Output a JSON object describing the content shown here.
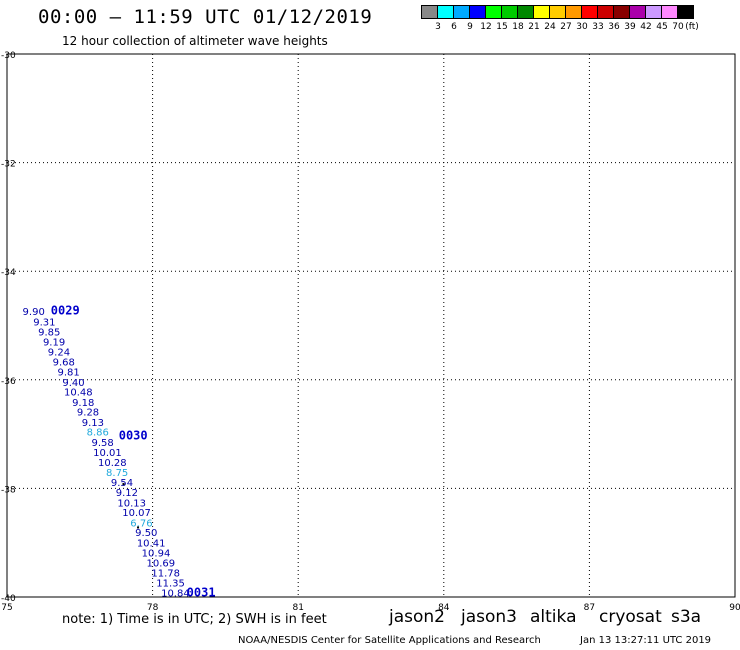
{
  "header": {
    "title": "00:00 – 11:59 UTC 01/12/2019",
    "subtitle": "12 hour collection of altimeter wave heights"
  },
  "color_scale": {
    "labels": [
      "3",
      "6",
      "9",
      "12",
      "15",
      "18",
      "21",
      "24",
      "27",
      "30",
      "33",
      "36",
      "39",
      "42",
      "45",
      "70"
    ],
    "unit": "(ft)",
    "colors": [
      "#888888",
      "#00ffff",
      "#00aaff",
      "#0000ff",
      "#00ff00",
      "#00cc00",
      "#008800",
      "#ffff00",
      "#ffcc00",
      "#ff9900",
      "#ff0000",
      "#cc0000",
      "#880000",
      "#aa00aa",
      "#cc99ff",
      "#ff88ff",
      "#000000"
    ]
  },
  "map": {
    "lon_ticks": [
      "75",
      "78",
      "81",
      "84",
      "87",
      "90"
    ],
    "lat_ticks": [
      "-30",
      "-32",
      "-34",
      "-36",
      "-38",
      "-40"
    ],
    "time_labels": [
      "0029",
      "0030",
      "0031"
    ],
    "observations": [
      {
        "lon": 75.55,
        "lat": -34.81,
        "swh": "9.90",
        "color": "#0000aa"
      },
      {
        "lon": 75.77,
        "lat": -35.0,
        "swh": "9.31",
        "color": "#0000aa"
      },
      {
        "lon": 75.87,
        "lat": -35.18,
        "swh": "9.85",
        "color": "#0000aa"
      },
      {
        "lon": 75.97,
        "lat": -35.37,
        "swh": "9.19",
        "color": "#0000aa"
      },
      {
        "lon": 76.07,
        "lat": -35.55,
        "swh": "9.24",
        "color": "#0000aa"
      },
      {
        "lon": 76.17,
        "lat": -35.74,
        "swh": "9.68",
        "color": "#0000aa"
      },
      {
        "lon": 76.27,
        "lat": -35.92,
        "swh": "9.81",
        "color": "#0000aa"
      },
      {
        "lon": 76.37,
        "lat": -36.11,
        "swh": "9.40",
        "color": "#0000aa"
      },
      {
        "lon": 76.47,
        "lat": -36.29,
        "swh": "10.48",
        "color": "#0000aa"
      },
      {
        "lon": 76.57,
        "lat": -36.48,
        "swh": "9.18",
        "color": "#0000aa"
      },
      {
        "lon": 76.67,
        "lat": -36.66,
        "swh": "9.28",
        "color": "#0000aa"
      },
      {
        "lon": 76.77,
        "lat": -36.85,
        "swh": "9.13",
        "color": "#0000aa"
      },
      {
        "lon": 76.87,
        "lat": -37.03,
        "swh": "8.86",
        "color": "#22aadd"
      },
      {
        "lon": 76.97,
        "lat": -37.22,
        "swh": "9.58",
        "color": "#0000aa"
      },
      {
        "lon": 77.07,
        "lat": -37.4,
        "swh": "10.01",
        "color": "#0000aa"
      },
      {
        "lon": 77.17,
        "lat": -37.59,
        "swh": "10.28",
        "color": "#0000aa"
      },
      {
        "lon": 77.27,
        "lat": -37.77,
        "swh": "8.75",
        "color": "#22aadd"
      },
      {
        "lon": 77.37,
        "lat": -37.96,
        "swh": "9.54",
        "color": "#0000aa"
      },
      {
        "lon": 77.47,
        "lat": -38.14,
        "swh": "9.12",
        "color": "#0000aa"
      },
      {
        "lon": 77.57,
        "lat": -38.33,
        "swh": "10.13",
        "color": "#0000aa"
      },
      {
        "lon": 77.67,
        "lat": -38.51,
        "swh": "10.07",
        "color": "#0000aa"
      },
      {
        "lon": 77.77,
        "lat": -38.7,
        "swh": "6.76",
        "color": "#22aadd"
      },
      {
        "lon": 77.87,
        "lat": -38.88,
        "swh": "9.50",
        "color": "#0000aa"
      },
      {
        "lon": 77.97,
        "lat": -39.07,
        "swh": "10.41",
        "color": "#0000aa"
      },
      {
        "lon": 78.07,
        "lat": -39.25,
        "swh": "10.94",
        "color": "#0000aa"
      },
      {
        "lon": 78.17,
        "lat": -39.44,
        "swh": "10.69",
        "color": "#0000aa"
      },
      {
        "lon": 78.27,
        "lat": -39.62,
        "swh": "11.78",
        "color": "#0000aa"
      },
      {
        "lon": 78.37,
        "lat": -39.81,
        "swh": "11.35",
        "color": "#0000aa"
      },
      {
        "lon": 78.47,
        "lat": -39.99,
        "swh": "10.84",
        "color": "#0000aa"
      }
    ]
  },
  "footer": {
    "note": "note: 1) Time is in UTC; 2) SWH is in feet",
    "satellites": [
      {
        "name": "jason2",
        "color": "#0000cc"
      },
      {
        "name": "jason3",
        "color": "#00aa00"
      },
      {
        "name": "altika",
        "color": "#ff9900"
      },
      {
        "name": "cryosat",
        "color": "#ee0000"
      },
      {
        "name": "s3a",
        "color": "#aa0000"
      }
    ],
    "credit": "NOAA/NESDIS Center for Satellite Applications and Research",
    "timestamp": "Jan 13 13:27:11 UTC 2019"
  }
}
